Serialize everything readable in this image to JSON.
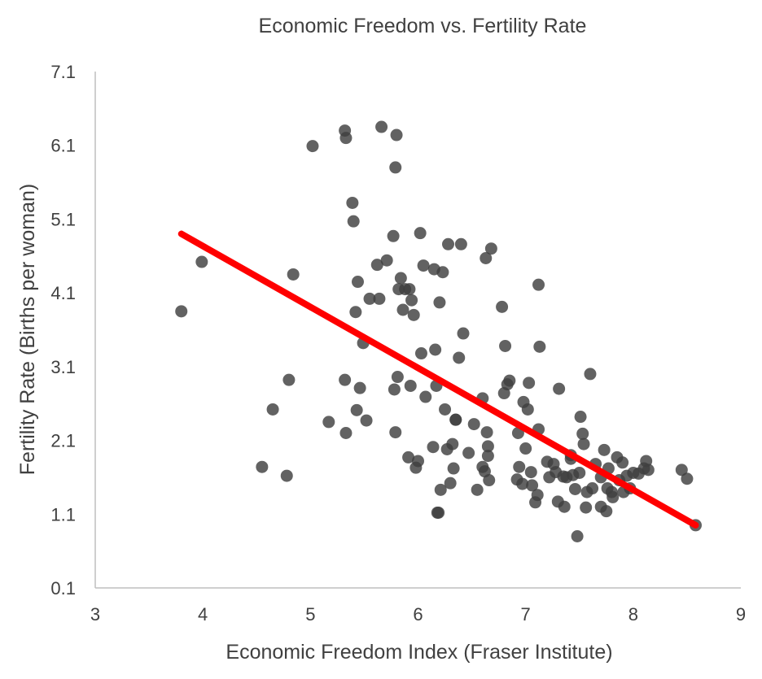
{
  "chart_data": {
    "type": "scatter",
    "title": "Economic Freedom vs. Fertility Rate",
    "xlabel": "Economic Freedom Index (Fraser Institute)",
    "ylabel": "Fertility Rate (Births per woman)",
    "xlim": [
      3,
      9
    ],
    "ylim": [
      0.1,
      7.1
    ],
    "x_ticks": [
      "3",
      "4",
      "5",
      "6",
      "7",
      "8",
      "9"
    ],
    "y_ticks": [
      "0.1",
      "1.1",
      "2.1",
      "3.1",
      "4.1",
      "5.1",
      "6.1",
      "7.1"
    ],
    "grid": false,
    "legend": "none",
    "colors": {
      "points": "#404040",
      "trendline": "#ff0000",
      "axis": "#bfbfbf",
      "text": "#404040"
    },
    "trendline": {
      "x": [
        3.8,
        8.58
      ],
      "y": [
        4.9,
        0.95
      ]
    },
    "series": [
      {
        "x": [
          3.8,
          3.99,
          4.55,
          4.65,
          4.78,
          4.8,
          4.84,
          5.02,
          5.17,
          5.32,
          5.32,
          5.33,
          5.33,
          5.39,
          5.4,
          5.42,
          5.43,
          5.44,
          5.46,
          5.49,
          5.52,
          5.55,
          5.62,
          5.64,
          5.66,
          5.71,
          5.77,
          5.78,
          5.79,
          5.79,
          5.8,
          5.81,
          5.82,
          5.84,
          5.86,
          5.88,
          5.91,
          5.92,
          5.93,
          5.94,
          5.96,
          5.98,
          6.0,
          6.02,
          6.03,
          6.05,
          6.07,
          6.14,
          6.15,
          6.16,
          6.17,
          6.18,
          6.19,
          6.2,
          6.21,
          6.23,
          6.25,
          6.27,
          6.28,
          6.3,
          6.32,
          6.33,
          6.35,
          6.35,
          6.38,
          6.4,
          6.42,
          6.47,
          6.52,
          6.55,
          6.6,
          6.6,
          6.62,
          6.63,
          6.64,
          6.65,
          6.65,
          6.66,
          6.68,
          6.78,
          6.8,
          6.81,
          6.83,
          6.85,
          6.92,
          6.93,
          6.94,
          6.97,
          6.98,
          7.0,
          7.02,
          7.03,
          7.05,
          7.06,
          7.09,
          7.11,
          7.12,
          7.12,
          7.13,
          7.2,
          7.22,
          7.26,
          7.28,
          7.3,
          7.31,
          7.35,
          7.36,
          7.38,
          7.42,
          7.42,
          7.44,
          7.46,
          7.48,
          7.5,
          7.51,
          7.53,
          7.54,
          7.56,
          7.57,
          7.6,
          7.62,
          7.65,
          7.7,
          7.7,
          7.73,
          7.75,
          7.76,
          7.77,
          7.8,
          7.81,
          7.85,
          7.87,
          7.9,
          7.91,
          7.94,
          7.97,
          8.0,
          8.05,
          8.1,
          8.12,
          8.14,
          8.45,
          8.5,
          8.58
        ],
        "y": [
          3.85,
          4.52,
          1.74,
          2.52,
          1.62,
          2.92,
          4.35,
          6.09,
          2.35,
          6.3,
          2.92,
          6.2,
          2.2,
          5.32,
          5.07,
          3.84,
          2.51,
          4.25,
          2.81,
          3.42,
          2.37,
          4.02,
          4.48,
          4.02,
          6.35,
          4.54,
          4.87,
          2.79,
          5.8,
          2.21,
          6.24,
          2.96,
          4.15,
          4.3,
          3.87,
          4.15,
          1.87,
          4.15,
          2.84,
          4.0,
          3.8,
          1.73,
          1.82,
          4.91,
          3.28,
          4.47,
          2.69,
          2.01,
          4.42,
          3.33,
          2.84,
          1.12,
          1.12,
          3.97,
          1.43,
          4.38,
          2.52,
          1.98,
          4.76,
          1.52,
          2.05,
          1.72,
          2.38,
          2.38,
          3.22,
          4.76,
          3.55,
          1.93,
          2.32,
          1.43,
          2.67,
          1.74,
          1.68,
          4.57,
          2.21,
          1.89,
          2.02,
          1.56,
          4.7,
          3.91,
          2.74,
          3.38,
          2.86,
          2.91,
          1.57,
          2.2,
          1.74,
          1.51,
          2.62,
          1.99,
          2.52,
          2.88,
          1.67,
          1.49,
          1.26,
          1.36,
          2.25,
          4.21,
          3.37,
          1.81,
          1.6,
          1.78,
          1.67,
          1.27,
          2.8,
          1.61,
          1.2,
          1.6,
          1.85,
          1.9,
          1.63,
          1.44,
          0.8,
          1.66,
          2.42,
          2.19,
          2.05,
          1.19,
          1.4,
          3.0,
          1.45,
          1.78,
          1.2,
          1.6,
          1.97,
          1.14,
          1.45,
          1.72,
          1.4,
          1.33,
          1.87,
          1.56,
          1.8,
          1.4,
          1.62,
          1.45,
          1.66,
          1.65,
          1.72,
          1.82,
          1.7,
          1.7,
          1.58,
          0.95
        ]
      }
    ]
  }
}
